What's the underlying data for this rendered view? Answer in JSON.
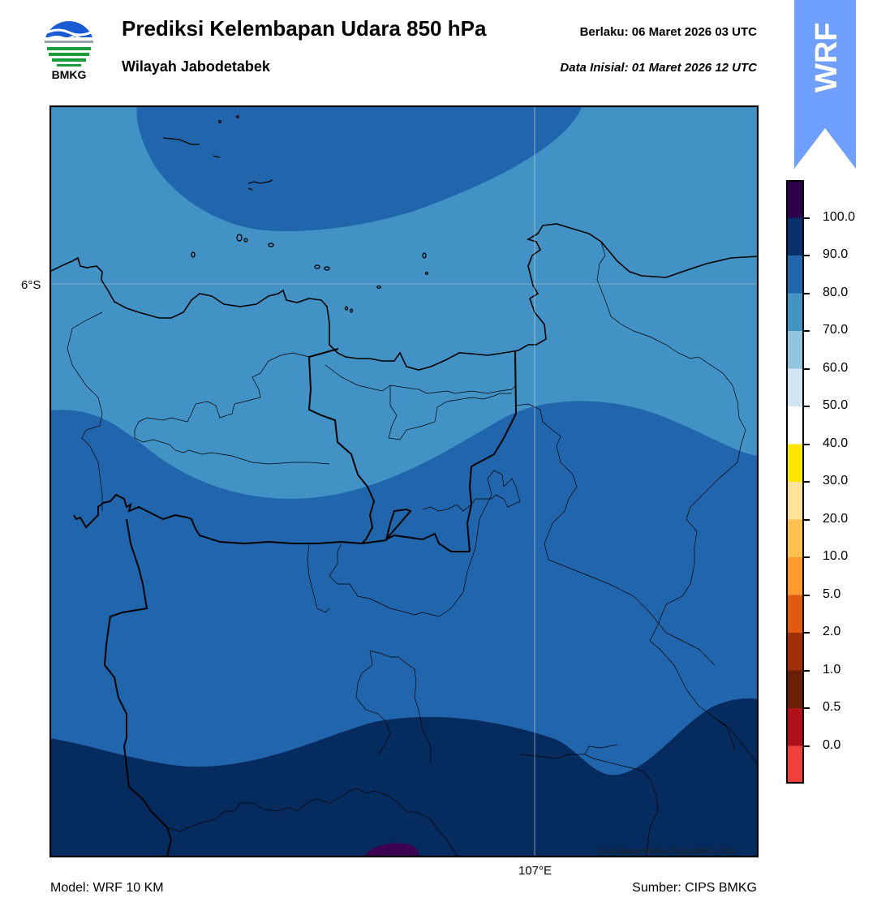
{
  "header": {
    "logo_text": "BMKG",
    "title": "Prediksi Kelembapan Udara 850 hPa",
    "subtitle": "Wilayah Jabodetabek",
    "valid_label": "Berlaku:  06 Maret 2026 03 UTC",
    "init_label": "Data Inisial:  01 Maret 2026 12 UTC"
  },
  "badge": {
    "text": "WRF",
    "color": "#6fa0ff"
  },
  "map": {
    "lat_label": "6°S",
    "lon_label": "107°E",
    "copyright": "©Sub Bidang Prediksi Cuaca BMKG, 2020",
    "band_colors": {
      "70-80": "#4292c6",
      "80-90": "#2166ac",
      "90-100": "#062b5e",
      "100+": "#3b0052"
    }
  },
  "footer": {
    "model": "Model: WRF 10 KM",
    "source": "Sumber: CIPS BMKG"
  },
  "colorbar": {
    "labels": [
      "100.0",
      "90.0",
      "80.0",
      "70.0",
      "60.0",
      "50.0",
      "40.0",
      "30.0",
      "20.0",
      "10.0",
      "5.0",
      "2.0",
      "1.0",
      "0.5",
      "0.0"
    ],
    "colors": [
      "#2d004b",
      "#08306b",
      "#2166ac",
      "#4393c3",
      "#92c5de",
      "#d1e5f0",
      "#ffffff",
      "#ffe600",
      "#ffe29a",
      "#ffc04d",
      "#ff9a2e",
      "#e05a0f",
      "#a0300a",
      "#6b1f07",
      "#b0101a",
      "#f0403c"
    ]
  }
}
